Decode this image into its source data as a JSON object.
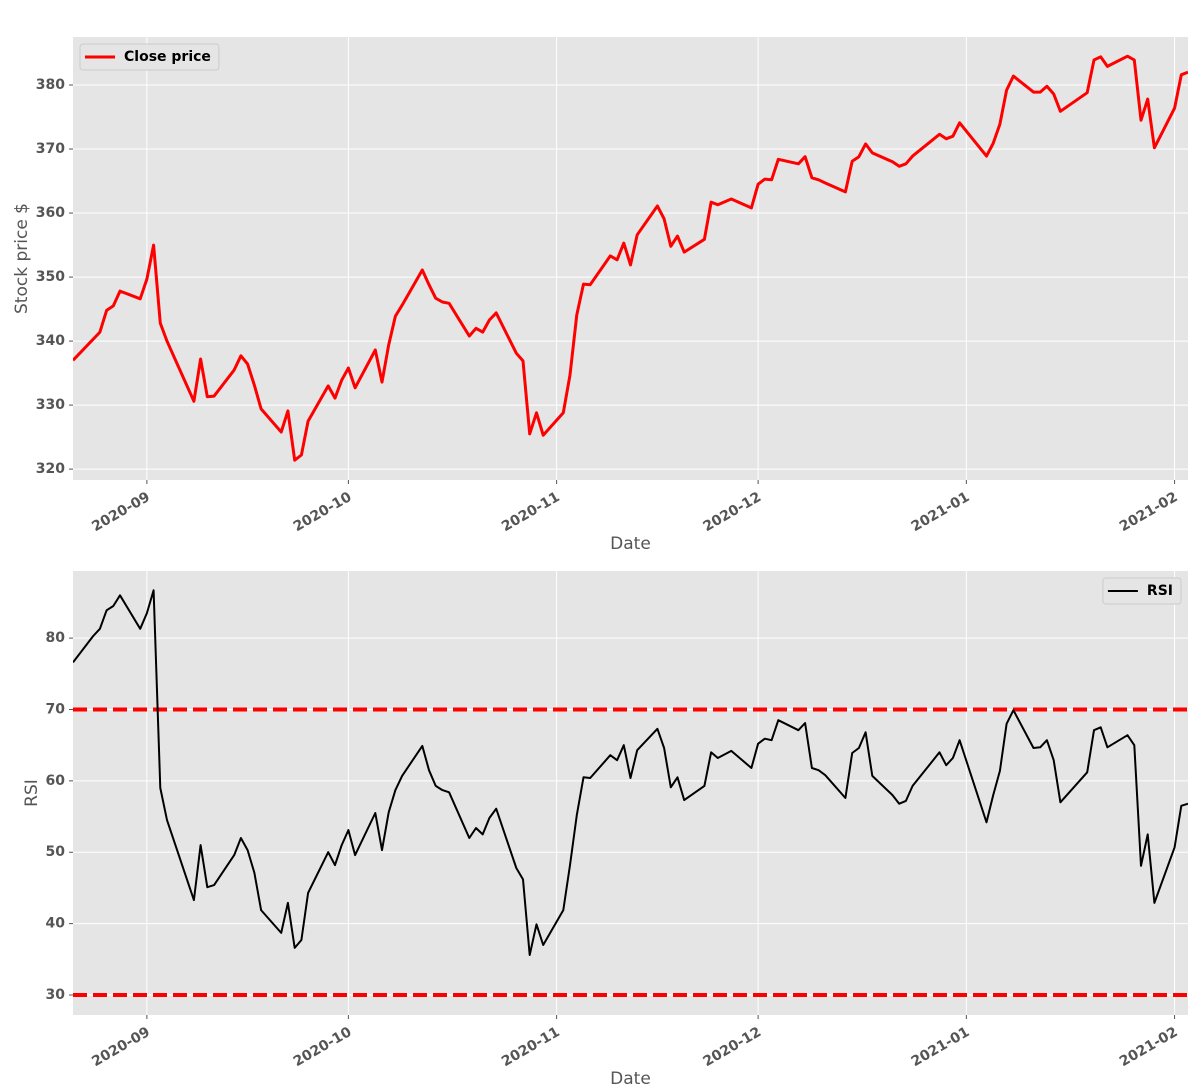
{
  "chart_data": [
    {
      "type": "line",
      "xlabel": "Date",
      "ylabel": "Stock price $",
      "legend": "upper left",
      "grid": true,
      "x": [
        18495,
        18498,
        18499,
        18500,
        18501,
        18502,
        18505,
        18506,
        18507,
        18508,
        18509,
        18513,
        18514,
        18515,
        18516,
        18519,
        18520,
        18521,
        18522,
        18523,
        18526,
        18527,
        18528,
        18529,
        18530,
        18533,
        18534,
        18535,
        18536,
        18537,
        18540,
        18541,
        18542,
        18543,
        18544,
        18547,
        18548,
        18549,
        18550,
        18551,
        18554,
        18555,
        18556,
        18557,
        18558,
        18561,
        18562,
        18563,
        18564,
        18565,
        18568,
        18569,
        18570,
        18571,
        18572,
        18575,
        18576,
        18577,
        18578,
        18579,
        18582,
        18583,
        18584,
        18585,
        18586,
        18589,
        18590,
        18591,
        18593,
        18596,
        18597,
        18598,
        18599,
        18600,
        18603,
        18604,
        18605,
        18606,
        18607,
        18610,
        18611,
        18612,
        18613,
        18614,
        18617,
        18618,
        18619,
        18620,
        18624,
        18625,
        18626,
        18627,
        18631,
        18632,
        18633,
        18634,
        18635,
        18638,
        18639,
        18640,
        18641,
        18642,
        18646,
        18647,
        18648,
        18649,
        18652,
        18653,
        18654,
        18655,
        18656,
        18659,
        18660,
        18661
      ],
      "series": [
        {
          "name": "Close price",
          "color": "#ff0000",
          "values": [
            337.0,
            340.3,
            341.4,
            344.8,
            345.5,
            347.8,
            346.6,
            349.7,
            355.0,
            342.8,
            340.0,
            330.6,
            337.2,
            331.3,
            331.4,
            335.5,
            337.7,
            336.4,
            333.1,
            329.4,
            325.8,
            329.1,
            321.4,
            322.2,
            327.5,
            333.0,
            331.1,
            333.9,
            335.8,
            332.7,
            338.6,
            333.6,
            339.4,
            343.9,
            345.6,
            351.1,
            348.8,
            346.7,
            346.1,
            345.9,
            340.8,
            342.0,
            341.4,
            343.3,
            344.4,
            338.1,
            336.9,
            325.5,
            328.8,
            325.3,
            328.8,
            334.7,
            344.1,
            348.9,
            348.8,
            353.3,
            352.7,
            355.3,
            351.9,
            356.6,
            361.1,
            359.1,
            354.8,
            356.4,
            353.9,
            355.9,
            361.7,
            361.3,
            362.2,
            360.8,
            364.5,
            365.3,
            365.2,
            368.4,
            367.7,
            368.8,
            365.5,
            365.2,
            364.7,
            363.3,
            368.1,
            368.8,
            370.8,
            369.4,
            368.0,
            367.3,
            367.7,
            368.9,
            372.3,
            371.6,
            372.0,
            374.1,
            368.9,
            370.9,
            373.9,
            379.2,
            381.4,
            378.9,
            378.9,
            379.8,
            378.6,
            375.9,
            378.8,
            383.9,
            384.4,
            382.9,
            384.5,
            383.9,
            374.5,
            377.8,
            370.2,
            376.4,
            381.6,
            382.0
          ]
        }
      ],
      "xlim": [
        18495,
        18661
      ],
      "xticks": [
        {
          "value": 18506,
          "label": "2020-09"
        },
        {
          "value": 18536,
          "label": "2020-10"
        },
        {
          "value": 18567,
          "label": "2020-11"
        },
        {
          "value": 18597,
          "label": "2020-12"
        },
        {
          "value": 18628,
          "label": "2021-01"
        },
        {
          "value": 18659,
          "label": "2021-02"
        }
      ],
      "ylim": [
        318.3,
        387.5
      ],
      "yticks": [
        320,
        330,
        340,
        350,
        360,
        370,
        380
      ]
    },
    {
      "type": "line",
      "xlabel": "Date",
      "ylabel": "RSI",
      "legend": "upper right",
      "grid": true,
      "x": [
        18495,
        18498,
        18499,
        18500,
        18501,
        18502,
        18505,
        18506,
        18507,
        18508,
        18509,
        18513,
        18514,
        18515,
        18516,
        18519,
        18520,
        18521,
        18522,
        18523,
        18526,
        18527,
        18528,
        18529,
        18530,
        18533,
        18534,
        18535,
        18536,
        18537,
        18540,
        18541,
        18542,
        18543,
        18544,
        18547,
        18548,
        18549,
        18550,
        18551,
        18554,
        18555,
        18556,
        18557,
        18558,
        18561,
        18562,
        18563,
        18564,
        18565,
        18568,
        18569,
        18570,
        18571,
        18572,
        18575,
        18576,
        18577,
        18578,
        18579,
        18582,
        18583,
        18584,
        18585,
        18586,
        18589,
        18590,
        18591,
        18593,
        18596,
        18597,
        18598,
        18599,
        18600,
        18603,
        18604,
        18605,
        18606,
        18607,
        18610,
        18611,
        18612,
        18613,
        18614,
        18617,
        18618,
        18619,
        18620,
        18624,
        18625,
        18626,
        18627,
        18631,
        18632,
        18633,
        18634,
        18635,
        18638,
        18639,
        18640,
        18641,
        18642,
        18646,
        18647,
        18648,
        18649,
        18652,
        18653,
        18654,
        18655,
        18656,
        18659,
        18660,
        18661
      ],
      "series": [
        {
          "name": "RSI",
          "color": "#000000",
          "values": [
            76.6,
            80.3,
            81.3,
            83.9,
            84.5,
            86.0,
            81.3,
            83.5,
            86.7,
            59.0,
            54.5,
            43.3,
            51.0,
            45.1,
            45.4,
            49.6,
            52.0,
            50.3,
            47.1,
            41.9,
            38.7,
            42.9,
            36.6,
            37.7,
            44.3,
            50.0,
            48.2,
            51.0,
            53.1,
            49.6,
            55.5,
            50.3,
            55.6,
            58.7,
            60.7,
            64.9,
            61.5,
            59.3,
            58.7,
            58.4,
            52.0,
            53.4,
            52.5,
            54.8,
            56.1,
            47.8,
            46.2,
            35.6,
            39.9,
            37.0,
            41.9,
            48.2,
            55.2,
            60.5,
            60.4,
            63.6,
            62.9,
            65.0,
            60.4,
            64.3,
            67.3,
            64.6,
            59.1,
            60.5,
            57.3,
            59.3,
            64.0,
            63.2,
            64.2,
            61.8,
            65.2,
            65.9,
            65.7,
            68.5,
            67.1,
            68.1,
            61.8,
            61.5,
            60.8,
            57.6,
            63.9,
            64.6,
            66.8,
            60.7,
            58.0,
            56.8,
            57.2,
            59.3,
            64.0,
            62.2,
            63.2,
            65.7,
            54.2,
            58.0,
            61.4,
            68.0,
            69.9,
            64.6,
            64.7,
            65.7,
            62.9,
            57.0,
            61.2,
            67.1,
            67.5,
            64.7,
            66.4,
            65.0,
            48.1,
            52.5,
            42.9,
            50.7,
            56.5,
            56.8
          ]
        }
      ],
      "hlines": [
        70,
        30
      ],
      "hline_color": "#ff0000",
      "xlim": [
        18495,
        18661
      ],
      "xticks": [
        {
          "value": 18506,
          "label": "2020-09"
        },
        {
          "value": 18536,
          "label": "2020-10"
        },
        {
          "value": 18567,
          "label": "2020-11"
        },
        {
          "value": 18597,
          "label": "2020-12"
        },
        {
          "value": 18628,
          "label": "2021-01"
        },
        {
          "value": 18659,
          "label": "2021-02"
        }
      ],
      "ylim": [
        27.2,
        89.4
      ],
      "yticks": [
        30,
        40,
        50,
        60,
        70,
        80
      ]
    }
  ]
}
